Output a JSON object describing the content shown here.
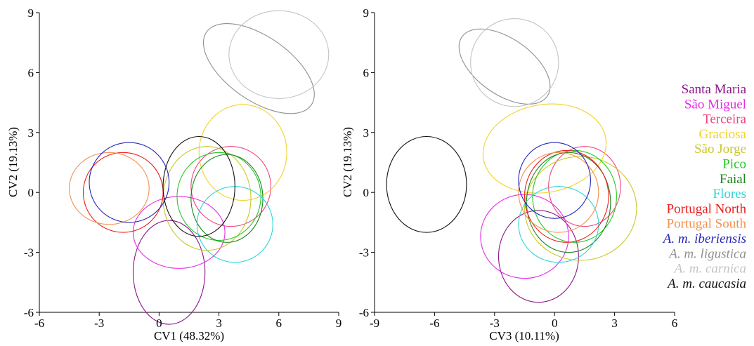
{
  "chart_data": [
    {
      "type": "scatter",
      "title": "",
      "xlabel": "CV1 (48.32%)",
      "ylabel": "CV2 (19.13%)",
      "xlim": [
        -6,
        9
      ],
      "ylim": [
        -6,
        9
      ],
      "xticks": [
        "-6",
        "-3",
        "0",
        "3",
        "6",
        "9"
      ],
      "yticks": [
        "-6",
        "-3",
        "0",
        "3",
        "6",
        "9"
      ],
      "grid": false,
      "element": "confidence-ellipses",
      "ellipses": [
        {
          "group": "Santa Maria",
          "cx": 0.5,
          "cy": -4.0,
          "rx": 1.8,
          "ry": 2.6,
          "angle": 0
        },
        {
          "group": "São Miguel",
          "cx": 1.0,
          "cy": -2.0,
          "rx": 2.3,
          "ry": 1.8,
          "angle": 0
        },
        {
          "group": "Terceira",
          "cx": 3.6,
          "cy": 0.3,
          "rx": 2.0,
          "ry": 2.0,
          "angle": 0
        },
        {
          "group": "Graciosa",
          "cx": 4.2,
          "cy": 2.0,
          "rx": 2.2,
          "ry": 2.4,
          "angle": 0
        },
        {
          "group": "São Jorge",
          "cx": 2.4,
          "cy": -0.3,
          "rx": 2.2,
          "ry": 2.6,
          "angle": 0
        },
        {
          "group": "Pico",
          "cx": 3.0,
          "cy": -0.2,
          "rx": 2.1,
          "ry": 2.2,
          "angle": 0
        },
        {
          "group": "Faial",
          "cx": 3.4,
          "cy": -0.3,
          "rx": 1.8,
          "ry": 2.2,
          "angle": 0
        },
        {
          "group": "Flores",
          "cx": 3.8,
          "cy": -1.6,
          "rx": 1.9,
          "ry": 1.9,
          "angle": 0
        },
        {
          "group": "Portugal North",
          "cx": -1.8,
          "cy": 0.0,
          "rx": 2.0,
          "ry": 2.0,
          "angle": 0
        },
        {
          "group": "Portugal South",
          "cx": -2.5,
          "cy": 0.2,
          "rx": 2.0,
          "ry": 1.8,
          "angle": 0
        },
        {
          "group": "A. m. iberiensis",
          "cx": -1.5,
          "cy": 0.5,
          "rx": 2.0,
          "ry": 2.0,
          "angle": 0
        },
        {
          "group": "A. m. ligustica",
          "cx": 5.0,
          "cy": 6.2,
          "rx": 3.2,
          "ry": 1.6,
          "angle": 35
        },
        {
          "group": "A. m. carnica",
          "cx": 6.0,
          "cy": 6.9,
          "rx": 2.5,
          "ry": 2.2,
          "angle": 0
        },
        {
          "group": "A. m. caucasia",
          "cx": 2.0,
          "cy": 0.3,
          "rx": 1.8,
          "ry": 2.5,
          "angle": 0
        }
      ]
    },
    {
      "type": "scatter",
      "title": "",
      "xlabel": "CV3 (10.11%)",
      "ylabel": "CV2 (19.13%)",
      "xlim": [
        -9,
        6
      ],
      "ylim": [
        -6,
        9
      ],
      "xticks": [
        "-9",
        "-6",
        "-3",
        "0",
        "3",
        "6"
      ],
      "yticks": [
        "-6",
        "-3",
        "0",
        "3",
        "6",
        "9"
      ],
      "grid": false,
      "element": "confidence-ellipses",
      "ellipses": [
        {
          "group": "Santa Maria",
          "cx": -0.8,
          "cy": -3.2,
          "rx": 2.0,
          "ry": 2.3,
          "angle": 0
        },
        {
          "group": "São Miguel",
          "cx": -1.5,
          "cy": -2.2,
          "rx": 2.2,
          "ry": 2.1,
          "angle": 0
        },
        {
          "group": "Terceira",
          "cx": 1.5,
          "cy": 0.3,
          "rx": 1.8,
          "ry": 2.0,
          "angle": 0
        },
        {
          "group": "Graciosa",
          "cx": -0.5,
          "cy": 2.2,
          "rx": 3.1,
          "ry": 2.2,
          "angle": -10
        },
        {
          "group": "São Jorge",
          "cx": 1.3,
          "cy": -0.8,
          "rx": 2.8,
          "ry": 2.6,
          "angle": 0
        },
        {
          "group": "Pico",
          "cx": 1.0,
          "cy": -0.2,
          "rx": 2.1,
          "ry": 2.3,
          "angle": 0
        },
        {
          "group": "Faial",
          "cx": 0.7,
          "cy": -0.5,
          "rx": 2.1,
          "ry": 2.5,
          "angle": 0
        },
        {
          "group": "Flores",
          "cx": 0.2,
          "cy": -1.6,
          "rx": 2.0,
          "ry": 1.9,
          "angle": 0
        },
        {
          "group": "Portugal North",
          "cx": 0.6,
          "cy": -0.2,
          "rx": 2.1,
          "ry": 2.3,
          "angle": 0
        },
        {
          "group": "Portugal South",
          "cx": 0.2,
          "cy": 0.0,
          "rx": 2.0,
          "ry": 2.0,
          "angle": 0
        },
        {
          "group": "A. m. iberiensis",
          "cx": 0.0,
          "cy": 0.6,
          "rx": 1.8,
          "ry": 1.9,
          "angle": 0
        },
        {
          "group": "A. m. ligustica",
          "cx": -2.5,
          "cy": 6.3,
          "rx": 2.6,
          "ry": 1.4,
          "angle": 35
        },
        {
          "group": "A. m. carnica",
          "cx": -2.0,
          "cy": 6.5,
          "rx": 2.2,
          "ry": 2.2,
          "angle": 0
        },
        {
          "group": "A. m. caucasia",
          "cx": -6.4,
          "cy": 0.4,
          "rx": 2.0,
          "ry": 2.4,
          "angle": 0
        }
      ]
    }
  ],
  "legend": {
    "placement": "right",
    "items": [
      {
        "label": "Santa Maria",
        "color": "#8b158b",
        "italic": false
      },
      {
        "label": "São Miguel",
        "color": "#e62be6",
        "italic": false
      },
      {
        "label": "Terceira",
        "color": "#f0447e",
        "italic": false
      },
      {
        "label": "Graciosa",
        "color": "#f2d22a",
        "italic": false
      },
      {
        "label": "São Jorge",
        "color": "#c9c92c",
        "italic": false
      },
      {
        "label": "Pico",
        "color": "#22c922",
        "italic": false
      },
      {
        "label": "Faial",
        "color": "#1c861c",
        "italic": false
      },
      {
        "label": "Flores",
        "color": "#2ad6d6",
        "italic": false
      },
      {
        "label": "Portugal North",
        "color": "#ee1c1c",
        "italic": false
      },
      {
        "label": "Portugal South",
        "color": "#f2914e",
        "italic": false
      },
      {
        "label": "A. m. iberiensis",
        "color": "#2424b8",
        "italic": true
      },
      {
        "label": "A. m. ligustica",
        "color": "#8f8f8f",
        "italic": true
      },
      {
        "label": "A. m. carnica",
        "color": "#c4c4c4",
        "italic": true
      },
      {
        "label": "A. m. caucasia",
        "color": "#111111",
        "italic": true
      }
    ]
  }
}
